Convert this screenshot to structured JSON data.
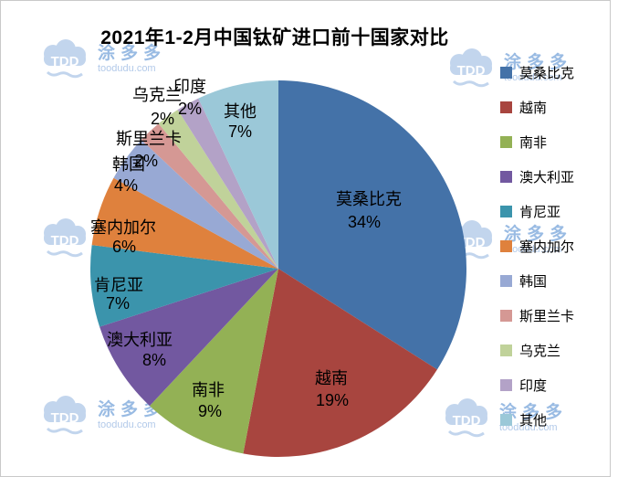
{
  "chart_data": {
    "type": "pie",
    "title": "2021年1-2月中国钛矿进口前十国家对比",
    "categories": [
      "莫桑比克",
      "越南",
      "南非",
      "澳大利亚",
      "肯尼亚",
      "塞内加尔",
      "韩国",
      "斯里兰卡",
      "乌克兰",
      "印度",
      "其他"
    ],
    "values": [
      34,
      19,
      9,
      8,
      7,
      6,
      4,
      2,
      2,
      2,
      7
    ],
    "percent_labels": [
      "34%",
      "19%",
      "9%",
      "8%",
      "7%",
      "6%",
      "4%",
      "2%",
      "2%",
      "2%",
      "7%"
    ],
    "unit": "%",
    "colors": [
      "#4472A8",
      "#A8453F",
      "#93B155",
      "#7258A0",
      "#3B94AC",
      "#DF813D",
      "#98A9D4",
      "#D59894",
      "#C0D29A",
      "#B3A2C7",
      "#9BC8D8"
    ],
    "legend_position": "right",
    "start_angle_deg": 0,
    "direction": "clockwise",
    "label_positions": [
      [
        404,
        224,
        399,
        249
      ],
      [
        363,
        420,
        364,
        444
      ],
      [
        228,
        433,
        230,
        456
      ],
      [
        153,
        378,
        169,
        400
      ],
      [
        130,
        318,
        129,
        338
      ],
      [
        135,
        255,
        136,
        276
      ],
      [
        141,
        186,
        138,
        209
      ],
      [
        163,
        158,
        160,
        182
      ],
      [
        172,
        110,
        178,
        136
      ],
      [
        208,
        101,
        208,
        125
      ],
      [
        263,
        128,
        263,
        150
      ]
    ]
  },
  "watermark": {
    "logo_text": "TDD",
    "brand": "涂多多",
    "url": "toodudu.com"
  }
}
